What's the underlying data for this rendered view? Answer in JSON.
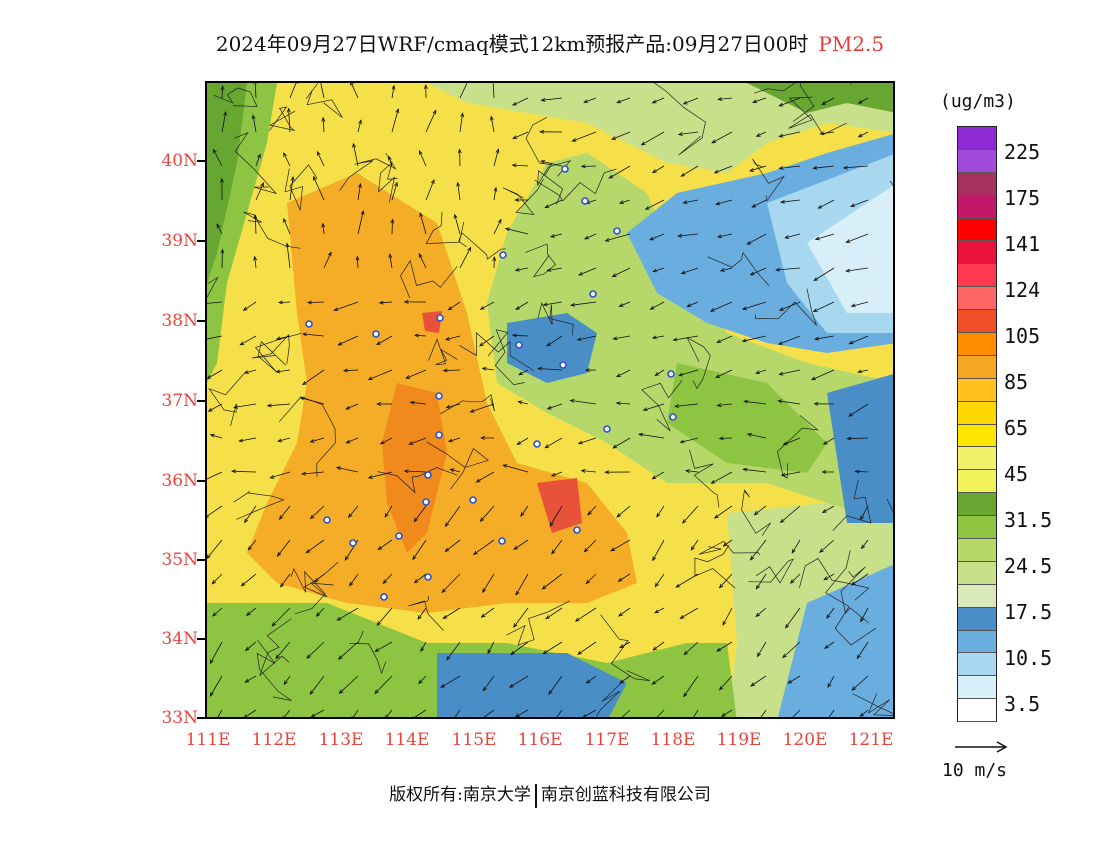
{
  "title": {
    "main": "2024年09月27日WRF/cmaq模式12km预报产品:09月27日00时",
    "pollutant": "PM2.5"
  },
  "axes": {
    "y_labels": [
      "40N",
      "39N",
      "38N",
      "37N",
      "36N",
      "35N",
      "34N",
      "33N"
    ],
    "x_labels": [
      "111E",
      "112E",
      "113E",
      "114E",
      "115E",
      "116E",
      "117E",
      "118E",
      "119E",
      "120E",
      "121E"
    ],
    "lat_range": [
      33,
      41
    ],
    "lon_range": [
      111,
      121.4
    ],
    "label_color": "#e8463d"
  },
  "legend": {
    "unit": "(ug/m3)",
    "labels": [
      "225",
      "175",
      "141",
      "124",
      "105",
      "85",
      "65",
      "45",
      "31.5",
      "24.5",
      "17.5",
      "10.5",
      "3.5"
    ],
    "colors": [
      "#8e2ad6",
      "#a04bd9",
      "#a8325f",
      "#c2186a",
      "#ff0000",
      "#e8123b",
      "#ff3a50",
      "#ff6666",
      "#f05028",
      "#ff8c00",
      "#f5a623",
      "#ffc020",
      "#ffd700",
      "#ffe600",
      "#f0f06a",
      "#f2f25a",
      "#68a632",
      "#8dc442",
      "#b6d86a",
      "#c8e08a",
      "#d8e8b8",
      "#4a8ec8",
      "#6aaee0",
      "#a8d8f0",
      "#d8eef8",
      "#ffffff"
    ]
  },
  "wind_scale": {
    "label": "10 m/s"
  },
  "footer": {
    "left": "版权所有:南京大学",
    "right": "南京创蓝科技有限公司"
  }
}
